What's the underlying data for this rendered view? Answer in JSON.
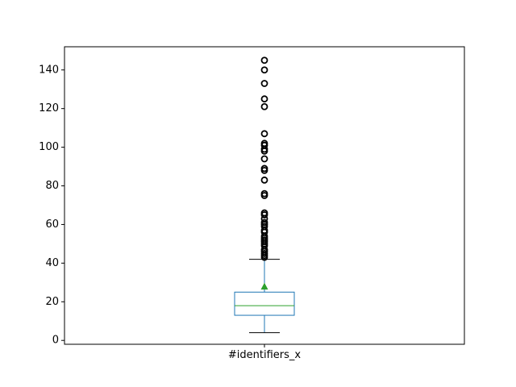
{
  "chart_data": {
    "type": "box",
    "title": "",
    "xlabel": "",
    "ylabel": "",
    "categories": [
      "#identifiers_x"
    ],
    "ylim": [
      -2,
      152
    ],
    "yticks": [
      0,
      20,
      40,
      60,
      80,
      100,
      120,
      140
    ],
    "ytick_labels": [
      "0",
      "20",
      "40",
      "60",
      "80",
      "100",
      "120",
      "140"
    ],
    "grid": false,
    "legend": "none",
    "box": {
      "whisker_low": 4,
      "q1": 13,
      "median": 18,
      "q3": 25,
      "whisker_high": 42,
      "mean": 28,
      "outliers": [
        43,
        44,
        45,
        46,
        47,
        49,
        50,
        51,
        52,
        53,
        54,
        56,
        57,
        59,
        60,
        61,
        63,
        65,
        66,
        75,
        76,
        83,
        88,
        89,
        94,
        98,
        99,
        101,
        102,
        107,
        121,
        125,
        133,
        140,
        145
      ]
    },
    "colors": {
      "box": "#1f77b4",
      "median": "#2ca02c",
      "mean": "#2ca02c",
      "outlier": "#000000",
      "cap": "#000000"
    }
  }
}
